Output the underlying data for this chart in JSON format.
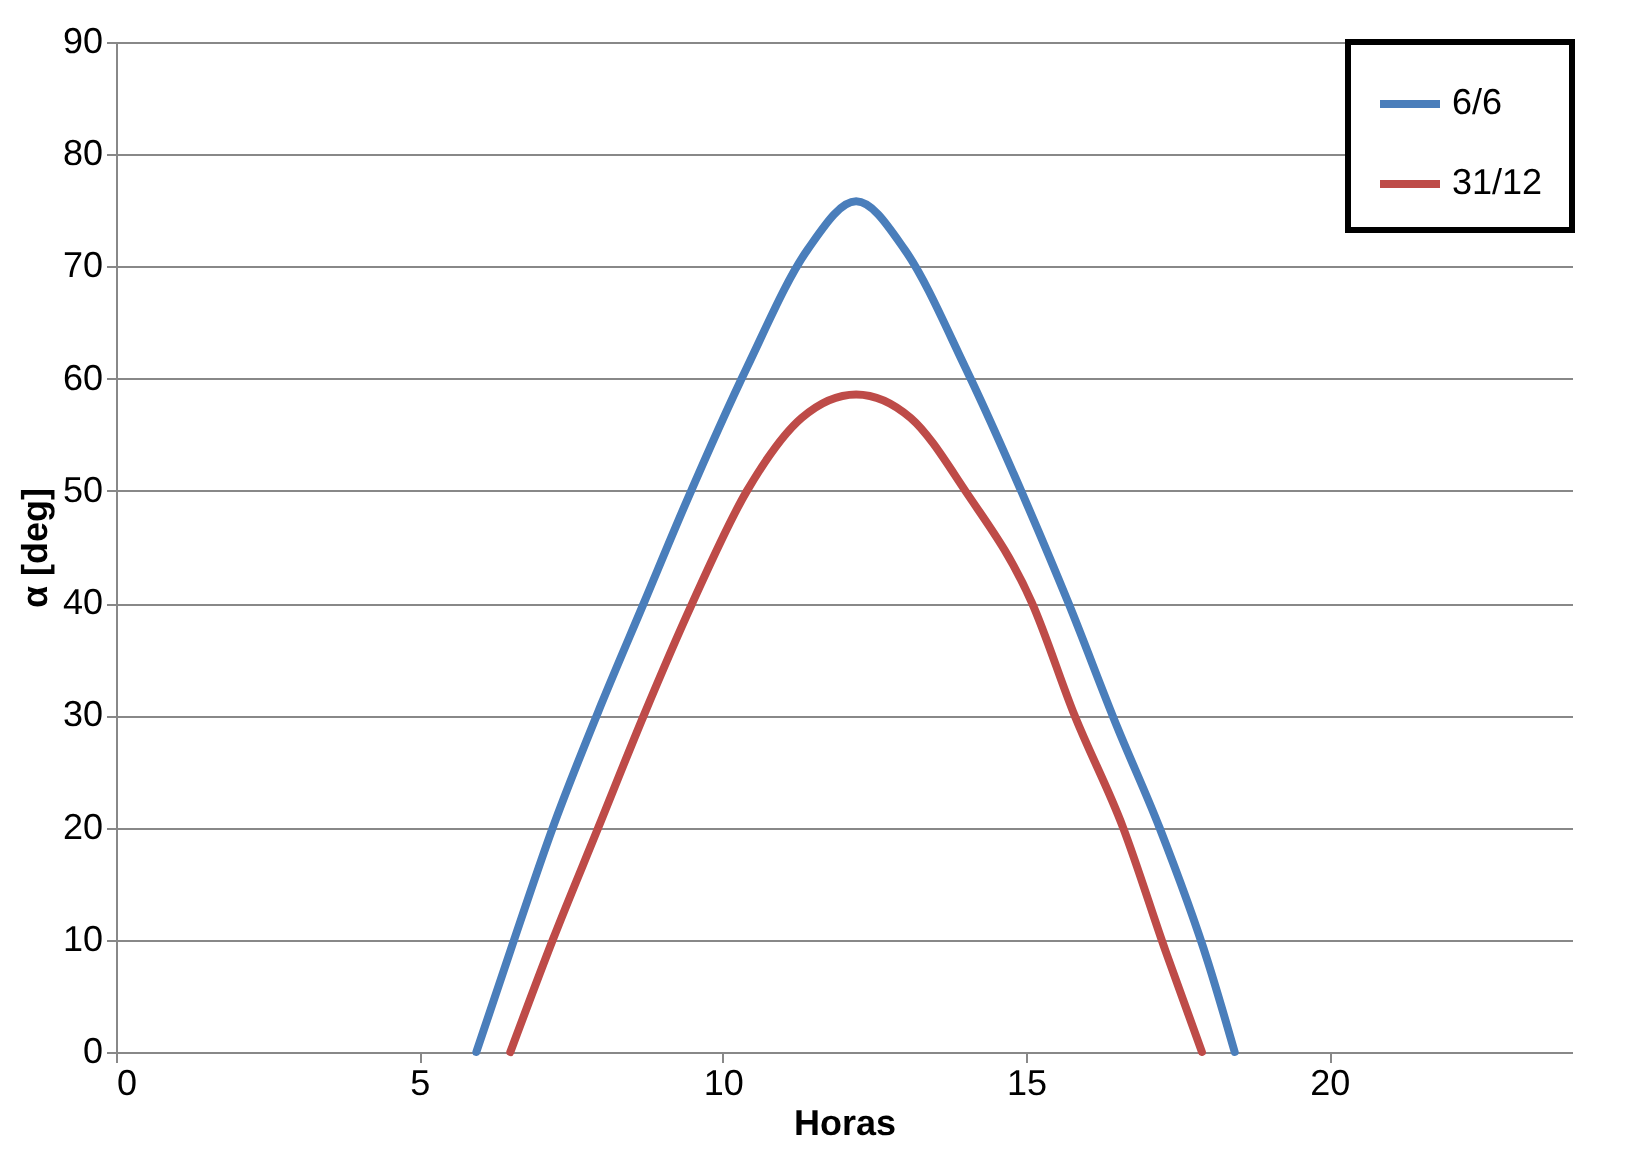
{
  "chart_data": {
    "type": "line",
    "xlabel": "Horas",
    "ylabel": "α [deg]",
    "xlim": [
      0,
      24
    ],
    "xticks": [
      0,
      5,
      10,
      15,
      20
    ],
    "ylim": [
      0,
      90
    ],
    "yticks": [
      0,
      10,
      20,
      30,
      40,
      50,
      60,
      70,
      80,
      90
    ],
    "grid": "y",
    "legend": "top right",
    "marker": "none",
    "line_style": "solid",
    "series": [
      {
        "name": "6/6",
        "color": "#4a7ebb",
        "x": [
          5.94,
          6.5,
          7.2,
          8,
          8.7,
          9.4,
          10.4,
          11.4,
          12.2,
          13,
          14,
          15,
          15.7,
          16.5,
          17.2,
          18,
          18.44
        ],
        "values": [
          0,
          9,
          20,
          31,
          40,
          49,
          61,
          71.5,
          75.8,
          71.5,
          61,
          49,
          40,
          29,
          20,
          8,
          0
        ]
      },
      {
        "name": "31/12",
        "color": "#be4b48",
        "x": [
          6.5,
          7.2,
          7.95,
          8.7,
          9.5,
          10.4,
          11.3,
          12.2,
          13.1,
          14,
          15.1,
          15.8,
          16.6,
          17.3,
          17.9
        ],
        "values": [
          0,
          10,
          20,
          30,
          40,
          50,
          56.5,
          58.6,
          56.5,
          50,
          40,
          30,
          20,
          9,
          0
        ]
      }
    ]
  }
}
